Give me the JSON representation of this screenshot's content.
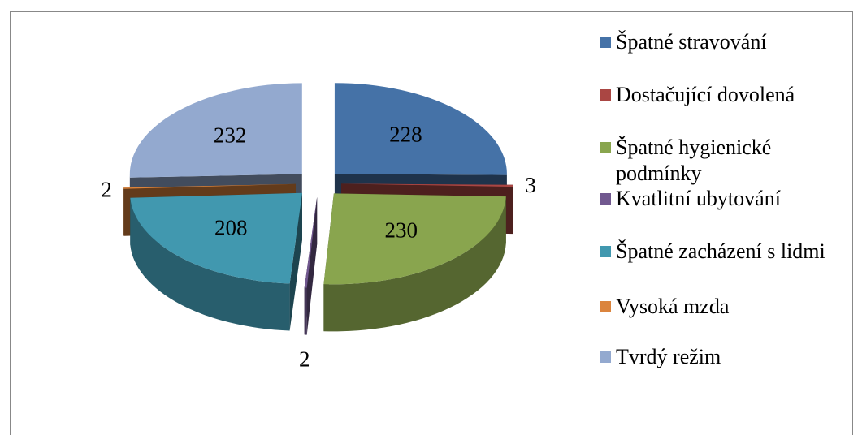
{
  "chart_data": {
    "type": "pie3d",
    "categories": [
      "Špatné stravování",
      "Dostačující dovolená",
      "Špatné hygienické podmínky",
      "Kvatlitní ubytování",
      "Špatné zacházení s lidmi",
      "Vysoká mzda",
      "Tvrdý režim"
    ],
    "values": [
      228,
      3,
      230,
      2,
      208,
      2,
      232
    ],
    "colors": [
      "#4572a7",
      "#aa4643",
      "#89a54e",
      "#71588f",
      "#4198af",
      "#db843d",
      "#93a9cf"
    ],
    "legend": "right"
  }
}
